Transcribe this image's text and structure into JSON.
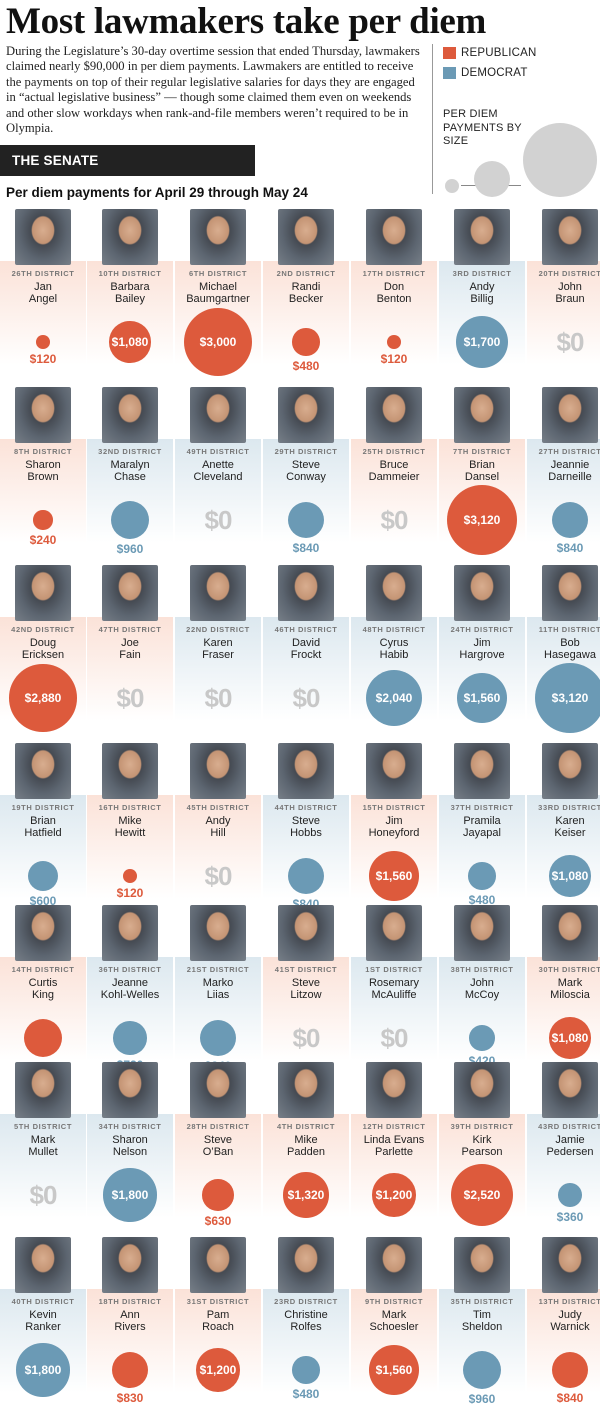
{
  "title": "Most lawmakers take per diem",
  "intro": "During the Legislature’s 30-day overtime session that ended Thursday, lawmakers claimed nearly $90,000 in per diem payments. Lawmakers are entitled to receive the payments on top of their regular legislative salaries for days they are engaged in “actual legislative business” — though some claimed them even on weekends and other slow workdays when rank-and-file members weren’t required to be in Olympia.",
  "legend": {
    "republican": "REPUBLICAN",
    "democrat": "DEMOCRAT",
    "size_label": "PER DIEM PAYMENTS BY SIZE"
  },
  "colors": {
    "republican": "#dd5a3c",
    "democrat": "#6b9ab5",
    "zero": "#c8c8c8"
  },
  "section": "THE SENATE",
  "subtitle": "Per diem payments for April 29 through May 24",
  "chart_data": {
    "type": "bubble",
    "value_unit": "USD",
    "series": [
      {
        "district": "26TH DISTRICT",
        "first": "Jan",
        "last": "Angel",
        "party": "R",
        "value": 120,
        "label": "$120"
      },
      {
        "district": "10TH DISTRICT",
        "first": "Barbara",
        "last": "Bailey",
        "party": "R",
        "value": 1080,
        "label": "$1,080"
      },
      {
        "district": "6TH DISTRICT",
        "first": "Michael",
        "last": "Baumgartner",
        "party": "R",
        "value": 3000,
        "label": "$3,000"
      },
      {
        "district": "2ND DISTRICT",
        "first": "Randi",
        "last": "Becker",
        "party": "R",
        "value": 480,
        "label": "$480"
      },
      {
        "district": "17TH DISTRICT",
        "first": "Don",
        "last": "Benton",
        "party": "R",
        "value": 120,
        "label": "$120"
      },
      {
        "district": "3RD DISTRICT",
        "first": "Andy",
        "last": "Billig",
        "party": "D",
        "value": 1700,
        "label": "$1,700"
      },
      {
        "district": "20TH DISTRICT",
        "first": "John",
        "last": "Braun",
        "party": "R",
        "value": 0,
        "label": "$0"
      },
      {
        "district": "8TH DISTRICT",
        "first": "Sharon",
        "last": "Brown",
        "party": "R",
        "value": 240,
        "label": "$240"
      },
      {
        "district": "32ND DISTRICT",
        "first": "Maralyn",
        "last": "Chase",
        "party": "D",
        "value": 960,
        "label": "$960"
      },
      {
        "district": "49TH DISTRICT",
        "first": "Anette",
        "last": "Cleveland",
        "party": "D",
        "value": 0,
        "label": "$0"
      },
      {
        "district": "29TH DISTRICT",
        "first": "Steve",
        "last": "Conway",
        "party": "D",
        "value": 840,
        "label": "$840"
      },
      {
        "district": "25TH DISTRICT",
        "first": "Bruce",
        "last": "Dammeier",
        "party": "R",
        "value": 0,
        "label": "$0"
      },
      {
        "district": "7TH DISTRICT",
        "first": "Brian",
        "last": "Dansel",
        "party": "R",
        "value": 3120,
        "label": "$3,120"
      },
      {
        "district": "27TH DISTRICT",
        "first": "Jeannie",
        "last": "Darneille",
        "party": "D",
        "value": 840,
        "label": "$840"
      },
      {
        "district": "42ND DISTRICT",
        "first": "Doug",
        "last": "Ericksen",
        "party": "R",
        "value": 2880,
        "label": "$2,880"
      },
      {
        "district": "47TH DISTRICT",
        "first": "Joe",
        "last": "Fain",
        "party": "R",
        "value": 0,
        "label": "$0"
      },
      {
        "district": "22ND DISTRICT",
        "first": "Karen",
        "last": "Fraser",
        "party": "D",
        "value": 0,
        "label": "$0"
      },
      {
        "district": "46TH DISTRICT",
        "first": "David",
        "last": "Frockt",
        "party": "D",
        "value": 0,
        "label": "$0"
      },
      {
        "district": "48TH DISTRICT",
        "first": "Cyrus",
        "last": "Habib",
        "party": "D",
        "value": 2040,
        "label": "$2,040"
      },
      {
        "district": "24TH DISTRICT",
        "first": "Jim",
        "last": "Hargrove",
        "party": "D",
        "value": 1560,
        "label": "$1,560"
      },
      {
        "district": "11TH DISTRICT",
        "first": "Bob",
        "last": "Hasegawa",
        "party": "D",
        "value": 3120,
        "label": "$3,120"
      },
      {
        "district": "19TH DISTRICT",
        "first": "Brian",
        "last": "Hatfield",
        "party": "D",
        "value": 600,
        "label": "$600"
      },
      {
        "district": "16TH DISTRICT",
        "first": "Mike",
        "last": "Hewitt",
        "party": "R",
        "value": 120,
        "label": "$120"
      },
      {
        "district": "45TH DISTRICT",
        "first": "Andy",
        "last": "Hill",
        "party": "R",
        "value": 0,
        "label": "$0"
      },
      {
        "district": "44TH DISTRICT",
        "first": "Steve",
        "last": "Hobbs",
        "party": "D",
        "value": 840,
        "label": "$840"
      },
      {
        "district": "15TH DISTRICT",
        "first": "Jim",
        "last": "Honeyford",
        "party": "R",
        "value": 1560,
        "label": "$1,560"
      },
      {
        "district": "37TH DISTRICT",
        "first": "Pramila",
        "last": "Jayapal",
        "party": "D",
        "value": 480,
        "label": "$480"
      },
      {
        "district": "33RD DISTRICT",
        "first": "Karen",
        "last": "Keiser",
        "party": "D",
        "value": 1080,
        "label": "$1,080"
      },
      {
        "district": "14TH DISTRICT",
        "first": "Curtis",
        "last": "King",
        "party": "R",
        "value": 960,
        "label": "$960"
      },
      {
        "district": "36TH DISTRICT",
        "first": "Jeanne",
        "last": "Kohl-Welles",
        "party": "D",
        "value": 720,
        "label": "$720"
      },
      {
        "district": "21ST DISTRICT",
        "first": "Marko",
        "last": "Liias",
        "party": "D",
        "value": 840,
        "label": "$840"
      },
      {
        "district": "41ST DISTRICT",
        "first": "Steve",
        "last": "Litzow",
        "party": "R",
        "value": 0,
        "label": "$0"
      },
      {
        "district": "1ST DISTRICT",
        "first": "Rosemary",
        "last": "McAuliffe",
        "party": "D",
        "value": 0,
        "label": "$0"
      },
      {
        "district": "38TH DISTRICT",
        "first": "John",
        "last": "McCoy",
        "party": "D",
        "value": 420,
        "label": "$420"
      },
      {
        "district": "30TH DISTRICT",
        "first": "Mark",
        "last": "Miloscia",
        "party": "R",
        "value": 1080,
        "label": "$1,080"
      },
      {
        "district": "5TH DISTRICT",
        "first": "Mark",
        "last": "Mullet",
        "party": "D",
        "value": 0,
        "label": "$0"
      },
      {
        "district": "34TH DISTRICT",
        "first": "Sharon",
        "last": "Nelson",
        "party": "D",
        "value": 1800,
        "label": "$1,800"
      },
      {
        "district": "28TH DISTRICT",
        "first": "Steve",
        "last": "O’Ban",
        "party": "R",
        "value": 630,
        "label": "$630"
      },
      {
        "district": "4TH DISTRICT",
        "first": "Mike",
        "last": "Padden",
        "party": "R",
        "value": 1320,
        "label": "$1,320"
      },
      {
        "district": "12TH DISTRICT",
        "first": "Linda Evans",
        "last": "Parlette",
        "party": "R",
        "value": 1200,
        "label": "$1,200"
      },
      {
        "district": "39TH DISTRICT",
        "first": "Kirk",
        "last": "Pearson",
        "party": "R",
        "value": 2520,
        "label": "$2,520"
      },
      {
        "district": "43RD DISTRICT",
        "first": "Jamie",
        "last": "Pedersen",
        "party": "D",
        "value": 360,
        "label": "$360"
      },
      {
        "district": "40TH DISTRICT",
        "first": "Kevin",
        "last": "Ranker",
        "party": "D",
        "value": 1800,
        "label": "$1,800"
      },
      {
        "district": "18TH DISTRICT",
        "first": "Ann",
        "last": "Rivers",
        "party": "R",
        "value": 830,
        "label": "$830"
      },
      {
        "district": "31ST DISTRICT",
        "first": "Pam",
        "last": "Roach",
        "party": "R",
        "value": 1200,
        "label": "$1,200"
      },
      {
        "district": "23RD DISTRICT",
        "first": "Christine",
        "last": "Rolfes",
        "party": "D",
        "value": 480,
        "label": "$480"
      },
      {
        "district": "9TH DISTRICT",
        "first": "Mark",
        "last": "Schoesler",
        "party": "R",
        "value": 1560,
        "label": "$1,560"
      },
      {
        "district": "35TH DISTRICT",
        "first": "Tim",
        "last": "Sheldon",
        "party": "D",
        "value": 960,
        "label": "$960"
      },
      {
        "district": "13TH DISTRICT",
        "first": "Judy",
        "last": "Warnick",
        "party": "R",
        "value": 840,
        "label": "$840"
      }
    ]
  }
}
